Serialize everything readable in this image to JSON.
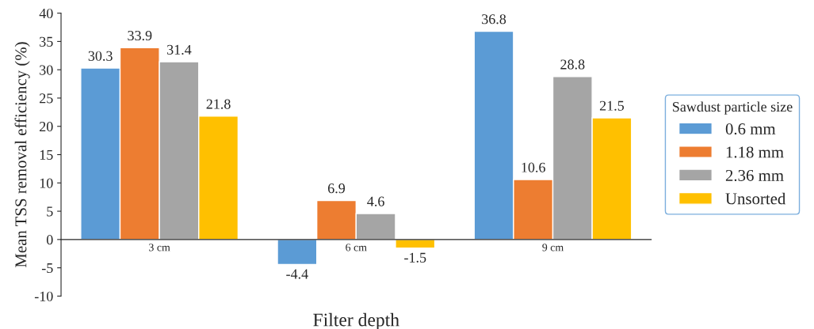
{
  "chart_data": {
    "type": "bar",
    "xlabel": "Filter depth",
    "ylabel": "Mean TSS removal efficiency (%)",
    "legend_title": "Sawdust particle size",
    "categories": [
      "3 cm",
      "6 cm",
      "9 cm"
    ],
    "series": [
      {
        "name": "0.6 mm",
        "color": "#5b9bd5",
        "values": [
          30.3,
          -4.4,
          36.8
        ]
      },
      {
        "name": "1.18 mm",
        "color": "#ed7d31",
        "values": [
          33.9,
          6.9,
          10.6
        ]
      },
      {
        "name": "2.36 mm",
        "color": "#a5a5a5",
        "values": [
          31.4,
          4.6,
          28.8
        ]
      },
      {
        "name": "Unsorted",
        "color": "#ffc000",
        "values": [
          21.8,
          -1.5,
          21.5
        ]
      }
    ],
    "ylim": [
      -10,
      40
    ],
    "yticks": [
      -10,
      -5,
      0,
      5,
      10,
      15,
      20,
      25,
      30,
      35,
      40
    ],
    "data_labels": true,
    "grid": false,
    "legend": "right"
  }
}
